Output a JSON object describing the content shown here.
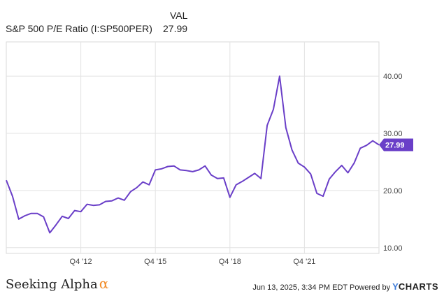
{
  "legend": {
    "header": "VAL",
    "series_name": "S&P 500 P/E Ratio (I:SP500PER)",
    "series_value": "27.99"
  },
  "footer": {
    "brand": "Seeking Alpha",
    "brand_symbol": "α",
    "timestamp": "Jun 13, 2025, 3:34 PM EDT Powered by",
    "provider_mark": "Y",
    "provider": "CHARTS"
  },
  "chart_data": {
    "type": "line",
    "title": "",
    "xlabel": "",
    "ylabel": "",
    "x_ticks": [
      {
        "label": "Q4 '12",
        "x": 2012.75
      },
      {
        "label": "Q4 '15",
        "x": 2015.75
      },
      {
        "label": "Q4 '18",
        "x": 2018.75
      },
      {
        "label": "Q4 '21",
        "x": 2021.75
      }
    ],
    "y_ticks": [
      {
        "label": "10.00",
        "y": 10
      },
      {
        "label": "20.00",
        "y": 20
      },
      {
        "label": "30.00",
        "y": 30
      },
      {
        "label": "40.00",
        "y": 40
      }
    ],
    "xlim": [
      2009.75,
      2024.75
    ],
    "ylim": [
      9,
      46
    ],
    "grid": true,
    "line_color": "#6a3fc8",
    "last_value_label": "27.99",
    "series": [
      {
        "x": [
          2009.75,
          2010.0,
          2010.25,
          2010.5,
          2010.75,
          2011.0,
          2011.25,
          2011.5,
          2011.75,
          2012.0,
          2012.25,
          2012.5,
          2012.75,
          2013.0,
          2013.25,
          2013.5,
          2013.75,
          2014.0,
          2014.25,
          2014.5,
          2014.75,
          2015.0,
          2015.25,
          2015.5,
          2015.75,
          2016.0,
          2016.25,
          2016.5,
          2016.75,
          2017.0,
          2017.25,
          2017.5,
          2017.75,
          2018.0,
          2018.25,
          2018.5,
          2018.75,
          2019.0,
          2019.25,
          2019.5,
          2019.75,
          2020.0,
          2020.25,
          2020.5,
          2020.75,
          2021.0,
          2021.25,
          2021.5,
          2021.75,
          2022.0,
          2022.25,
          2022.5,
          2022.75,
          2023.0,
          2023.25,
          2023.5,
          2023.75,
          2024.0,
          2024.25,
          2024.5,
          2024.75
        ],
        "y": [
          21.8,
          19.0,
          15.0,
          15.6,
          16.0,
          16.0,
          15.4,
          12.6,
          14.0,
          15.5,
          15.1,
          16.5,
          16.3,
          17.6,
          17.4,
          17.5,
          18.1,
          18.2,
          18.7,
          18.3,
          19.8,
          20.5,
          21.5,
          21.0,
          23.6,
          23.8,
          24.2,
          24.3,
          23.6,
          23.5,
          23.3,
          23.6,
          24.3,
          22.7,
          22.1,
          22.2,
          18.8,
          21.0,
          21.6,
          22.3,
          23.0,
          22.1,
          31.4,
          34.2,
          40.0,
          31.0,
          27.1,
          24.8,
          24.1,
          22.9,
          19.5,
          19.0,
          22.0,
          23.3,
          24.4,
          23.1,
          24.8,
          27.4,
          27.9,
          28.7,
          27.99
        ]
      }
    ]
  }
}
